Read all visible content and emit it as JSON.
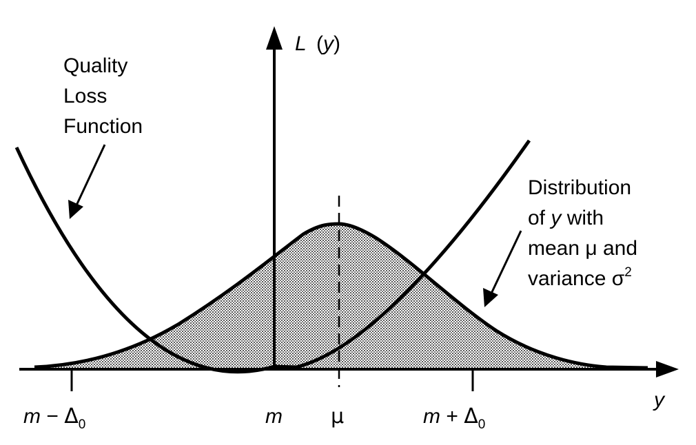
{
  "figure": {
    "vertical_axis_label": {
      "letter": "L",
      "open": "(",
      "var": "y",
      "close": ")"
    },
    "horizontal_axis_label": "y",
    "quality_loss_label": [
      "Quality",
      "Loss",
      "Function"
    ],
    "distribution_label": {
      "line1": "Distribution",
      "line2_prefix": "of ",
      "line2_var": "y",
      "line2_suffix": " with",
      "line3": "mean μ and",
      "line4": "variance σ",
      "line4_superscript": "2"
    },
    "ticks": {
      "left": {
        "var": "m",
        "op": " − ",
        "delta": "Δ",
        "sub": "0"
      },
      "center": "m",
      "mean": "μ",
      "right": {
        "var": "m",
        "op": " + ",
        "delta": "Δ",
        "sub": "0"
      }
    }
  },
  "colors": {
    "ink": "#000000",
    "shade": "#8c8c8c"
  }
}
